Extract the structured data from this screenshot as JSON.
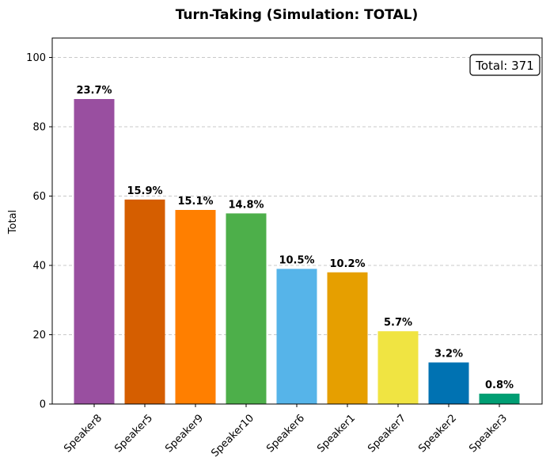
{
  "chart_data": {
    "type": "bar",
    "title": "Turn-Taking (Simulation: TOTAL)",
    "xlabel": "",
    "ylabel": "Total",
    "ylim": [
      0,
      105.6
    ],
    "yticks": [
      0,
      20,
      40,
      60,
      80,
      100
    ],
    "grid": "y, dashed",
    "categories": [
      "Speaker8",
      "Speaker5",
      "Speaker9",
      "Speaker10",
      "Speaker6",
      "Speaker1",
      "Speaker7",
      "Speaker2",
      "Speaker3"
    ],
    "values": [
      88,
      59,
      56,
      55,
      39,
      38,
      21,
      12,
      3
    ],
    "labels": [
      "23.7%",
      "15.9%",
      "15.1%",
      "14.8%",
      "10.5%",
      "10.2%",
      "5.7%",
      "3.2%",
      "0.8%"
    ],
    "colors": [
      "#994fa0",
      "#d55e00",
      "#ff7f00",
      "#4daf4a",
      "#56b4e9",
      "#e69f00",
      "#f0e442",
      "#0072b2",
      "#009e73"
    ],
    "annotation": "Total: 371"
  }
}
